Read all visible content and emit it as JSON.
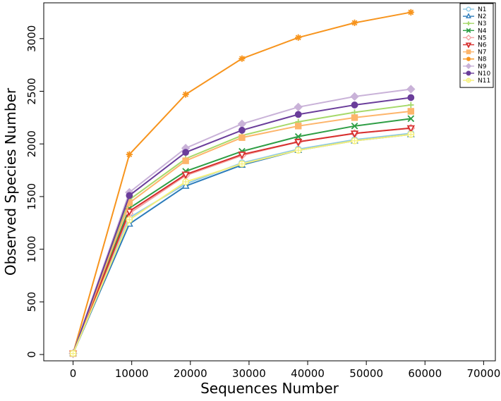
{
  "chart_data": {
    "type": "line",
    "xlabel": "Sequences Number",
    "ylabel": "Observed Species Number",
    "xlim": [
      -5000,
      72000
    ],
    "ylim": [
      -60,
      3340
    ],
    "xticks": [
      0,
      10000,
      20000,
      30000,
      40000,
      50000,
      60000,
      70000
    ],
    "yticks": [
      0,
      500,
      1000,
      1500,
      2000,
      2500,
      3000
    ],
    "x": [
      0,
      9600,
      19200,
      28800,
      38400,
      48000,
      57600
    ],
    "legend_position": "top-right",
    "grid": false,
    "series": [
      {
        "name": "N1",
        "color": "#8ecae6",
        "marker": "circle",
        "values": [
          10,
          1300,
          1620,
          1820,
          1950,
          2040,
          2100
        ]
      },
      {
        "name": "N2",
        "color": "#2b7bba",
        "marker": "triangle-up",
        "values": [
          10,
          1240,
          1600,
          1800,
          1940,
          2030,
          2090
        ]
      },
      {
        "name": "N3",
        "color": "#a6d96a",
        "marker": "plus",
        "values": [
          10,
          1470,
          1860,
          2080,
          2210,
          2300,
          2370
        ]
      },
      {
        "name": "N4",
        "color": "#2e9e45",
        "marker": "cross",
        "values": [
          10,
          1390,
          1740,
          1930,
          2070,
          2170,
          2240
        ]
      },
      {
        "name": "N5",
        "color": "#f4a3a3",
        "marker": "diamond-open",
        "values": [
          10,
          1340,
          1700,
          1890,
          2020,
          2100,
          2150
        ]
      },
      {
        "name": "N6",
        "color": "#d7302f",
        "marker": "triangle-down",
        "values": [
          10,
          1360,
          1710,
          1900,
          2020,
          2100,
          2150
        ]
      },
      {
        "name": "N7",
        "color": "#fdb56b",
        "marker": "square",
        "values": [
          10,
          1440,
          1840,
          2060,
          2170,
          2250,
          2310
        ]
      },
      {
        "name": "N8",
        "color": "#f7941d",
        "marker": "asterisk",
        "values": [
          10,
          1900,
          2470,
          2810,
          3010,
          3150,
          3250
        ]
      },
      {
        "name": "N9",
        "color": "#c9b2d8",
        "marker": "diamond",
        "values": [
          10,
          1540,
          1960,
          2190,
          2350,
          2450,
          2520
        ]
      },
      {
        "name": "N10",
        "color": "#6a3d9a",
        "marker": "circle-filled",
        "values": [
          10,
          1510,
          1920,
          2130,
          2280,
          2370,
          2440
        ]
      },
      {
        "name": "N11",
        "color": "#f5f07a",
        "marker": "circle-cross",
        "values": [
          10,
          1280,
          1640,
          1810,
          1940,
          2030,
          2090
        ]
      }
    ]
  }
}
